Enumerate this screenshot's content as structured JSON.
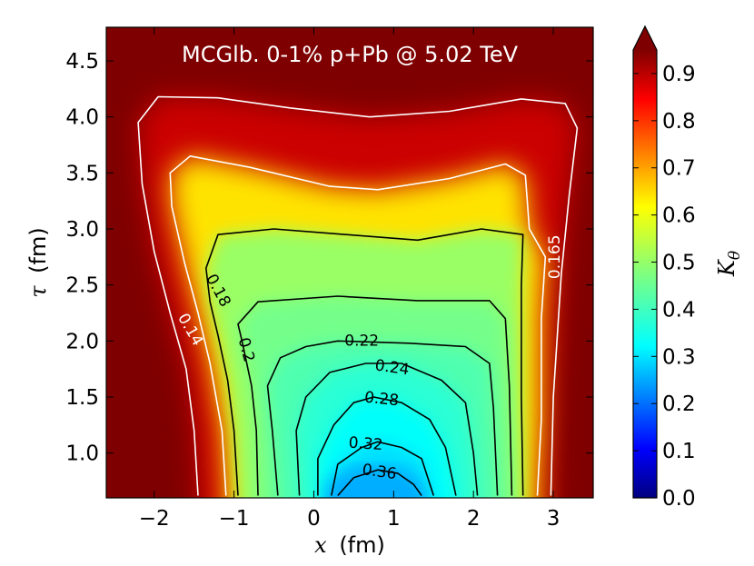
{
  "chart_data": {
    "type": "heatmap",
    "title": "MCGlb. 0-1% p+Pb @ 5.02 TeV",
    "xlabel": {
      "symbol": "x",
      "unit": "(fm)"
    },
    "ylabel": {
      "symbol": "τ",
      "unit": "(fm)"
    },
    "xlim": [
      -2.6,
      3.5
    ],
    "ylim": [
      0.6,
      4.8
    ],
    "xticks": [
      -2,
      -1,
      0,
      1,
      2,
      3
    ],
    "xtick_labels": [
      "−2",
      "−1",
      "0",
      "1",
      "2",
      "3"
    ],
    "yticks": [
      1.0,
      1.5,
      2.0,
      2.5,
      3.0,
      3.5,
      4.0,
      4.5
    ],
    "ytick_labels": [
      "1.0",
      "1.5",
      "2.0",
      "2.5",
      "3.0",
      "3.5",
      "4.0",
      "4.5"
    ],
    "colorbar": {
      "label": {
        "symbol": "K",
        "subscript": "θ"
      },
      "range": [
        0.0,
        0.95
      ],
      "extend": "max",
      "colormap": "jet",
      "ticks": [
        0.0,
        0.1,
        0.2,
        0.3,
        0.4,
        0.5,
        0.6,
        0.7,
        0.8,
        0.9
      ],
      "tick_labels": [
        "0.0",
        "0.1",
        "0.2",
        "0.3",
        "0.4",
        "0.5",
        "0.6",
        "0.7",
        "0.8",
        "0.9"
      ]
    },
    "background_value": 0.95,
    "contours": [
      {
        "level": 0.14,
        "label": "0.14",
        "color": "#ffffff",
        "points": [
          [
            -1.45,
            0.62
          ],
          [
            -1.5,
            1.2
          ],
          [
            -1.6,
            1.75
          ],
          [
            -1.8,
            2.25
          ],
          [
            -2.0,
            2.8
          ],
          [
            -2.15,
            3.4
          ],
          [
            -2.2,
            3.95
          ],
          [
            -1.95,
            4.18
          ],
          [
            -1.2,
            4.17
          ],
          [
            -0.3,
            4.08
          ],
          [
            0.7,
            4.0
          ],
          [
            1.7,
            4.05
          ],
          [
            2.6,
            4.16
          ],
          [
            3.15,
            4.12
          ],
          [
            3.3,
            3.9
          ],
          [
            3.2,
            3.3
          ],
          [
            3.1,
            2.6
          ],
          [
            3.0,
            1.5
          ],
          [
            2.97,
            0.62
          ]
        ]
      },
      {
        "level": 0.165,
        "label": "0.165",
        "color": "#ffffff",
        "points": [
          [
            -1.1,
            0.62
          ],
          [
            -1.15,
            1.2
          ],
          [
            -1.3,
            1.8
          ],
          [
            -1.45,
            2.25
          ],
          [
            -1.62,
            2.7
          ],
          [
            -1.78,
            3.2
          ],
          [
            -1.8,
            3.5
          ],
          [
            -1.55,
            3.65
          ],
          [
            -0.8,
            3.55
          ],
          [
            0.2,
            3.38
          ],
          [
            0.8,
            3.35
          ],
          [
            1.7,
            3.45
          ],
          [
            2.4,
            3.58
          ],
          [
            2.65,
            3.48
          ],
          [
            2.7,
            3.0
          ],
          [
            2.9,
            2.75
          ],
          [
            2.85,
            2.2
          ],
          [
            2.85,
            1.3
          ],
          [
            2.8,
            0.62
          ]
        ]
      },
      {
        "level": 0.18,
        "label": "0.18",
        "color": "#000000",
        "points": [
          [
            -0.95,
            0.62
          ],
          [
            -1.0,
            1.2
          ],
          [
            -1.08,
            1.65
          ],
          [
            -1.2,
            2.05
          ],
          [
            -1.3,
            2.35
          ],
          [
            -1.35,
            2.65
          ],
          [
            -1.2,
            2.95
          ],
          [
            -0.5,
            3.0
          ],
          [
            0.4,
            2.95
          ],
          [
            1.3,
            2.9
          ],
          [
            2.1,
            3.0
          ],
          [
            2.62,
            2.95
          ],
          [
            2.6,
            2.5
          ],
          [
            2.6,
            1.5
          ],
          [
            2.62,
            0.62
          ]
        ]
      },
      {
        "level": 0.2,
        "label": "0.2",
        "color": "#000000",
        "points": [
          [
            -0.7,
            0.62
          ],
          [
            -0.72,
            1.2
          ],
          [
            -0.78,
            1.6
          ],
          [
            -0.9,
            2.0
          ],
          [
            -0.95,
            2.15
          ],
          [
            -0.7,
            2.35
          ],
          [
            0.3,
            2.4
          ],
          [
            1.3,
            2.36
          ],
          [
            2.2,
            2.36
          ],
          [
            2.4,
            2.2
          ],
          [
            2.45,
            1.6
          ],
          [
            2.48,
            0.62
          ]
        ]
      },
      {
        "level": 0.22,
        "label": "0.22",
        "color": "#000000",
        "points": [
          [
            -0.45,
            0.62
          ],
          [
            -0.52,
            1.2
          ],
          [
            -0.58,
            1.6
          ],
          [
            -0.42,
            1.85
          ],
          [
            -0.1,
            1.95
          ],
          [
            0.3,
            2.0
          ],
          [
            1.2,
            1.98
          ],
          [
            1.9,
            1.95
          ],
          [
            2.2,
            1.8
          ],
          [
            2.25,
            1.4
          ],
          [
            2.3,
            0.62
          ]
        ]
      },
      {
        "level": 0.24,
        "label": "0.24",
        "color": "#000000",
        "points": [
          [
            -0.18,
            0.62
          ],
          [
            -0.22,
            1.2
          ],
          [
            -0.1,
            1.5
          ],
          [
            0.2,
            1.72
          ],
          [
            0.65,
            1.8
          ],
          [
            1.1,
            1.8
          ],
          [
            1.6,
            1.65
          ],
          [
            1.9,
            1.45
          ],
          [
            2.0,
            1.0
          ],
          [
            2.05,
            0.62
          ]
        ]
      },
      {
        "level": 0.28,
        "label": "0.28",
        "color": "#000000",
        "points": [
          [
            0.05,
            0.62
          ],
          [
            0.05,
            0.95
          ],
          [
            0.25,
            1.25
          ],
          [
            0.5,
            1.45
          ],
          [
            0.75,
            1.5
          ],
          [
            1.1,
            1.45
          ],
          [
            1.45,
            1.3
          ],
          [
            1.65,
            1.05
          ],
          [
            1.78,
            0.62
          ]
        ]
      },
      {
        "level": 0.32,
        "label": "0.32",
        "color": "#000000",
        "points": [
          [
            0.22,
            0.62
          ],
          [
            0.3,
            0.9
          ],
          [
            0.6,
            1.05
          ],
          [
            0.8,
            1.1
          ],
          [
            1.1,
            1.05
          ],
          [
            1.35,
            0.95
          ],
          [
            1.5,
            0.62
          ]
        ]
      },
      {
        "level": 0.36,
        "label": "0.36",
        "color": "#000000",
        "points": [
          [
            0.3,
            0.62
          ],
          [
            0.5,
            0.78
          ],
          [
            0.8,
            0.85
          ],
          [
            1.05,
            0.82
          ],
          [
            1.25,
            0.72
          ],
          [
            1.35,
            0.62
          ]
        ]
      }
    ],
    "contour_labels": [
      {
        "text": "0.14",
        "x": -1.55,
        "y": 2.1,
        "angle": 60,
        "color": "#ffffff"
      },
      {
        "text": "0.165",
        "x": 3.02,
        "y": 2.75,
        "angle": -90,
        "color": "#ffffff"
      },
      {
        "text": "0.18",
        "x": -1.2,
        "y": 2.45,
        "angle": 62,
        "color": "#000000"
      },
      {
        "text": "0.2",
        "x": -0.85,
        "y": 1.92,
        "angle": 75,
        "color": "#000000"
      },
      {
        "text": "0.22",
        "x": 0.6,
        "y": 2.0,
        "angle": 0,
        "color": "#000000"
      },
      {
        "text": "0.24",
        "x": 0.98,
        "y": 1.76,
        "angle": 8,
        "color": "#000000"
      },
      {
        "text": "0.28",
        "x": 0.85,
        "y": 1.48,
        "angle": 6,
        "color": "#000000"
      },
      {
        "text": "0.32",
        "x": 0.65,
        "y": 1.08,
        "angle": 4,
        "color": "#000000"
      },
      {
        "text": "0.36",
        "x": 0.82,
        "y": 0.83,
        "angle": 8,
        "color": "#000000"
      }
    ]
  }
}
